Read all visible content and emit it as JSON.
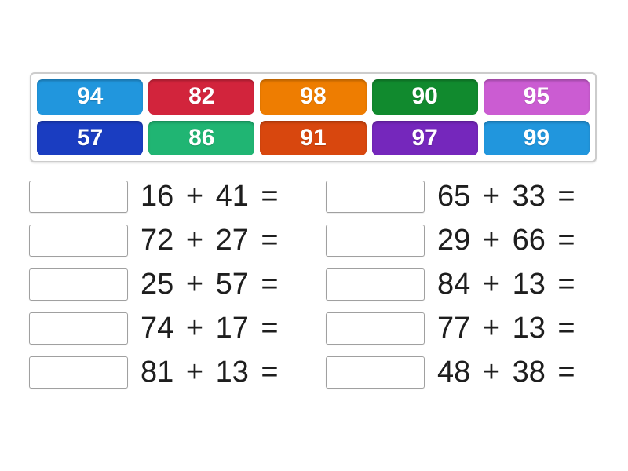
{
  "activity": {
    "answer_bank": {
      "tiles": [
        {
          "label": "94",
          "color": "#2196DD"
        },
        {
          "label": "82",
          "color": "#D2243C"
        },
        {
          "label": "98",
          "color": "#EE7D01"
        },
        {
          "label": "90",
          "color": "#118A2E"
        },
        {
          "label": "95",
          "color": "#CB5CD2"
        },
        {
          "label": "57",
          "color": "#1A3DC1"
        },
        {
          "label": "86",
          "color": "#20B573"
        },
        {
          "label": "91",
          "color": "#D8470E"
        },
        {
          "label": "97",
          "color": "#7527BC"
        },
        {
          "label": "99",
          "color": "#2196DD"
        }
      ]
    },
    "problems": {
      "left": [
        "16 + 41 =",
        "72 + 27 =",
        "25 + 57 =",
        "74 + 17 =",
        "81 + 13 ="
      ],
      "right": [
        "65 + 33 =",
        "29 + 66 =",
        "84 + 13 =",
        "77 + 13 =",
        "48 + 38 ="
      ],
      "answer_value": ""
    },
    "colors": {
      "bank_border": "#CCCCCC",
      "box_border": "#A0A0A0",
      "equation_text": "#1E1E1E",
      "page_background": "#FFFFFF"
    }
  }
}
